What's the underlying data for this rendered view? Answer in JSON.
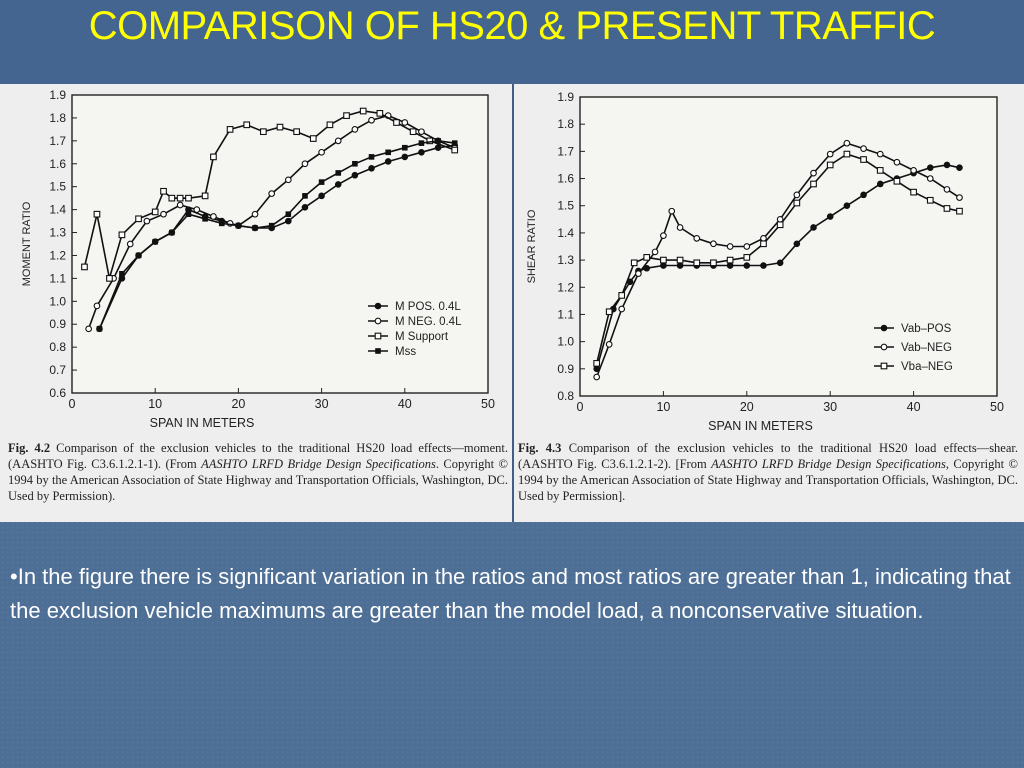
{
  "slide": {
    "title": "COMPARISON OF HS20 & PRESENT TRAFFIC",
    "body_text": "•In the figure there is significant variation in the ratios and most ratios are greater than 1, indicating that the exclusion vehicle maximums are greater than the model load, a nonconservative situation."
  },
  "colors": {
    "title": "#ffff00",
    "background": "#4d6e95",
    "figure_bg": "#eeeeee",
    "body_text": "#ffffff"
  },
  "figures": [
    {
      "caption_prefix": "Fig. 4.2",
      "caption_text": "Comparison of the exclusion vehicles to the traditional HS20 load effects—moment. (AASHTO Fig. C3.6.1.2.1-1). (From ",
      "caption_italic": "AASHTO LRFD Bridge Design Specifications",
      "caption_end": ". Copyright © 1994 by the American Association of State Highway and Transportation Officials, Washington, DC. Used by Permission)."
    },
    {
      "caption_prefix": "Fig. 4.3",
      "caption_text": "Comparison of the exclusion vehicles to the traditional HS20 load effects—shear. (AASHTO Fig. C3.6.1.2.1-2). [From ",
      "caption_italic": "AASHTO LRFD Bridge Design Specifications",
      "caption_end": ", Copyright © 1994 by the American Association of State Highway and Transportation Officials, Washington, DC. Used by Permission]."
    }
  ],
  "chart_data": [
    {
      "type": "line",
      "xlabel": "SPAN IN METERS",
      "ylabel": "MOMENT RATIO",
      "xlim": [
        0,
        50
      ],
      "ylim": [
        0.6,
        1.9
      ],
      "xticks": [
        0,
        10,
        20,
        30,
        40,
        50
      ],
      "yticks": [
        0.6,
        0.7,
        0.8,
        0.9,
        1.0,
        1.1,
        1.2,
        1.3,
        1.4,
        1.5,
        1.6,
        1.7,
        1.8,
        1.9
      ],
      "ytick_labels": [
        "0.6",
        "0.7",
        "0.8",
        "0.9",
        "1.0",
        "1.1",
        "1.2",
        "1.3",
        "1.4",
        "1.5",
        "1.6",
        "1.7",
        "1.8",
        "1.9"
      ],
      "legend_position": "bottom-right",
      "series": [
        {
          "name": "M POS. 0.4L",
          "marker": "filled-circle",
          "x": [
            3.3,
            6,
            8,
            10,
            12,
            14,
            16,
            18,
            20,
            22,
            24,
            26,
            28,
            30,
            32,
            34,
            36,
            38,
            40,
            42,
            44,
            46
          ],
          "y": [
            0.88,
            1.1,
            1.2,
            1.26,
            1.3,
            1.4,
            1.37,
            1.35,
            1.33,
            1.32,
            1.32,
            1.35,
            1.41,
            1.46,
            1.51,
            1.55,
            1.58,
            1.61,
            1.63,
            1.65,
            1.67,
            1.68
          ]
        },
        {
          "name": "M NEG. 0.4L",
          "marker": "open-circle",
          "x": [
            2,
            3,
            5,
            7,
            9,
            11,
            13,
            15,
            17,
            19,
            20,
            22,
            24,
            26,
            28,
            30,
            32,
            34,
            36,
            38,
            40,
            42,
            44,
            46
          ],
          "y": [
            0.88,
            0.98,
            1.1,
            1.25,
            1.35,
            1.38,
            1.42,
            1.4,
            1.37,
            1.34,
            1.33,
            1.38,
            1.47,
            1.53,
            1.6,
            1.65,
            1.7,
            1.75,
            1.79,
            1.81,
            1.78,
            1.74,
            1.7,
            1.67
          ]
        },
        {
          "name": "M Support",
          "marker": "open-square",
          "x": [
            1.5,
            3,
            4.5,
            6,
            8,
            10,
            11,
            12,
            13,
            14,
            16,
            17,
            19,
            21,
            23,
            25,
            27,
            29,
            31,
            33,
            35,
            37,
            39,
            41,
            43,
            46
          ],
          "y": [
            1.15,
            1.38,
            1.1,
            1.29,
            1.36,
            1.39,
            1.48,
            1.45,
            1.45,
            1.45,
            1.46,
            1.63,
            1.75,
            1.77,
            1.74,
            1.76,
            1.74,
            1.71,
            1.77,
            1.81,
            1.83,
            1.82,
            1.78,
            1.74,
            1.7,
            1.66
          ]
        },
        {
          "name": "Mss",
          "marker": "filled-square",
          "x": [
            3.3,
            6,
            8,
            10,
            12,
            14,
            16,
            18,
            20,
            22,
            24,
            26,
            28,
            30,
            32,
            34,
            36,
            38,
            40,
            42,
            44,
            46
          ],
          "y": [
            0.88,
            1.12,
            1.2,
            1.26,
            1.3,
            1.38,
            1.36,
            1.34,
            1.33,
            1.32,
            1.33,
            1.38,
            1.46,
            1.52,
            1.56,
            1.6,
            1.63,
            1.65,
            1.67,
            1.69,
            1.7,
            1.69
          ]
        }
      ]
    },
    {
      "type": "line",
      "xlabel": "SPAN IN METERS",
      "ylabel": "SHEAR RATIO",
      "xlim": [
        0,
        50
      ],
      "ylim": [
        0.8,
        1.9
      ],
      "xticks": [
        0,
        10,
        20,
        30,
        40,
        50
      ],
      "yticks": [
        0.8,
        0.9,
        1.0,
        1.1,
        1.2,
        1.3,
        1.4,
        1.5,
        1.6,
        1.7,
        1.8,
        1.9
      ],
      "ytick_labels": [
        "0.8",
        "0.9",
        "1.0",
        "1.1",
        "1.2",
        "1.3",
        "1.4",
        "1.5",
        "1.6",
        "1.7",
        "1.8",
        "1.9"
      ],
      "legend_position": "bottom-right",
      "series": [
        {
          "name": "Vab–POS",
          "marker": "filled-circle",
          "x": [
            2,
            4,
            6,
            7,
            8,
            10,
            12,
            14,
            16,
            18,
            20,
            22,
            24,
            26,
            28,
            30,
            32,
            34,
            36,
            38,
            40,
            42,
            44,
            45.5
          ],
          "y": [
            0.9,
            1.12,
            1.22,
            1.26,
            1.27,
            1.28,
            1.28,
            1.28,
            1.28,
            1.28,
            1.28,
            1.28,
            1.29,
            1.36,
            1.42,
            1.46,
            1.5,
            1.54,
            1.58,
            1.6,
            1.62,
            1.64,
            1.65,
            1.64
          ]
        },
        {
          "name": "Vab–NEG",
          "marker": "open-circle",
          "x": [
            2,
            3.5,
            5,
            7,
            9,
            10,
            11,
            12,
            14,
            16,
            18,
            20,
            22,
            24,
            26,
            28,
            30,
            32,
            34,
            36,
            38,
            40,
            42,
            44,
            45.5
          ],
          "y": [
            0.87,
            0.99,
            1.12,
            1.25,
            1.33,
            1.39,
            1.48,
            1.42,
            1.38,
            1.36,
            1.35,
            1.35,
            1.38,
            1.45,
            1.54,
            1.62,
            1.69,
            1.73,
            1.71,
            1.69,
            1.66,
            1.63,
            1.6,
            1.56,
            1.53
          ]
        },
        {
          "name": "Vba–NEG",
          "marker": "open-square",
          "x": [
            2,
            3.5,
            5,
            6.5,
            8,
            10,
            12,
            14,
            16,
            18,
            20,
            22,
            24,
            26,
            28,
            30,
            32,
            34,
            36,
            38,
            40,
            42,
            44,
            45.5
          ],
          "y": [
            0.92,
            1.11,
            1.17,
            1.29,
            1.31,
            1.3,
            1.3,
            1.29,
            1.29,
            1.3,
            1.31,
            1.36,
            1.43,
            1.51,
            1.58,
            1.65,
            1.69,
            1.67,
            1.63,
            1.59,
            1.55,
            1.52,
            1.49,
            1.48
          ]
        }
      ]
    }
  ]
}
